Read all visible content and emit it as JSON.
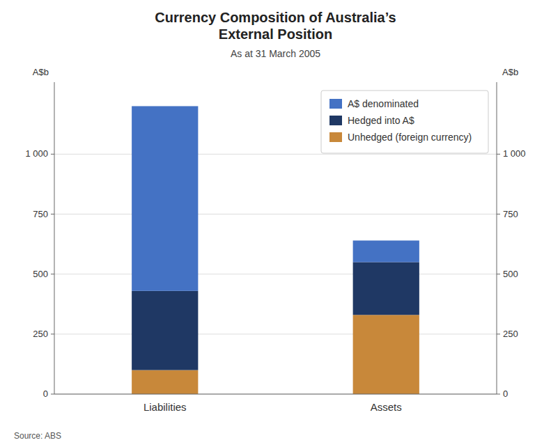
{
  "chart_data": {
    "type": "bar",
    "stacked": true,
    "title": "Currency Composition of Australia’s\nExternal Position",
    "subtitle": "As at 31 March 2005",
    "ylabel": "A$b",
    "y2label": "A$b",
    "source": "Source: ABS",
    "categories": [
      "Liabilities",
      "Assets"
    ],
    "series": [
      {
        "name": "Unhedged (foreign currency)",
        "color": "#C8883A",
        "values": [
          100,
          330
        ]
      },
      {
        "name": "Hedged into A$",
        "color": "#1F3864",
        "values": [
          330,
          220
        ]
      },
      {
        "name": "A$ denominated",
        "color": "#4472C4",
        "values": [
          770,
          90
        ]
      }
    ],
    "ylim": [
      0,
      1300
    ],
    "yticks": [
      0,
      250,
      500,
      750,
      {
        "value": 1000,
        "label": "1 000"
      }
    ],
    "y2lim": [
      0,
      1300
    ],
    "y2ticks": [
      0,
      250,
      500,
      750,
      {
        "value": 1000,
        "label": "1 000"
      }
    ],
    "grid": true,
    "legend": "upper right"
  }
}
